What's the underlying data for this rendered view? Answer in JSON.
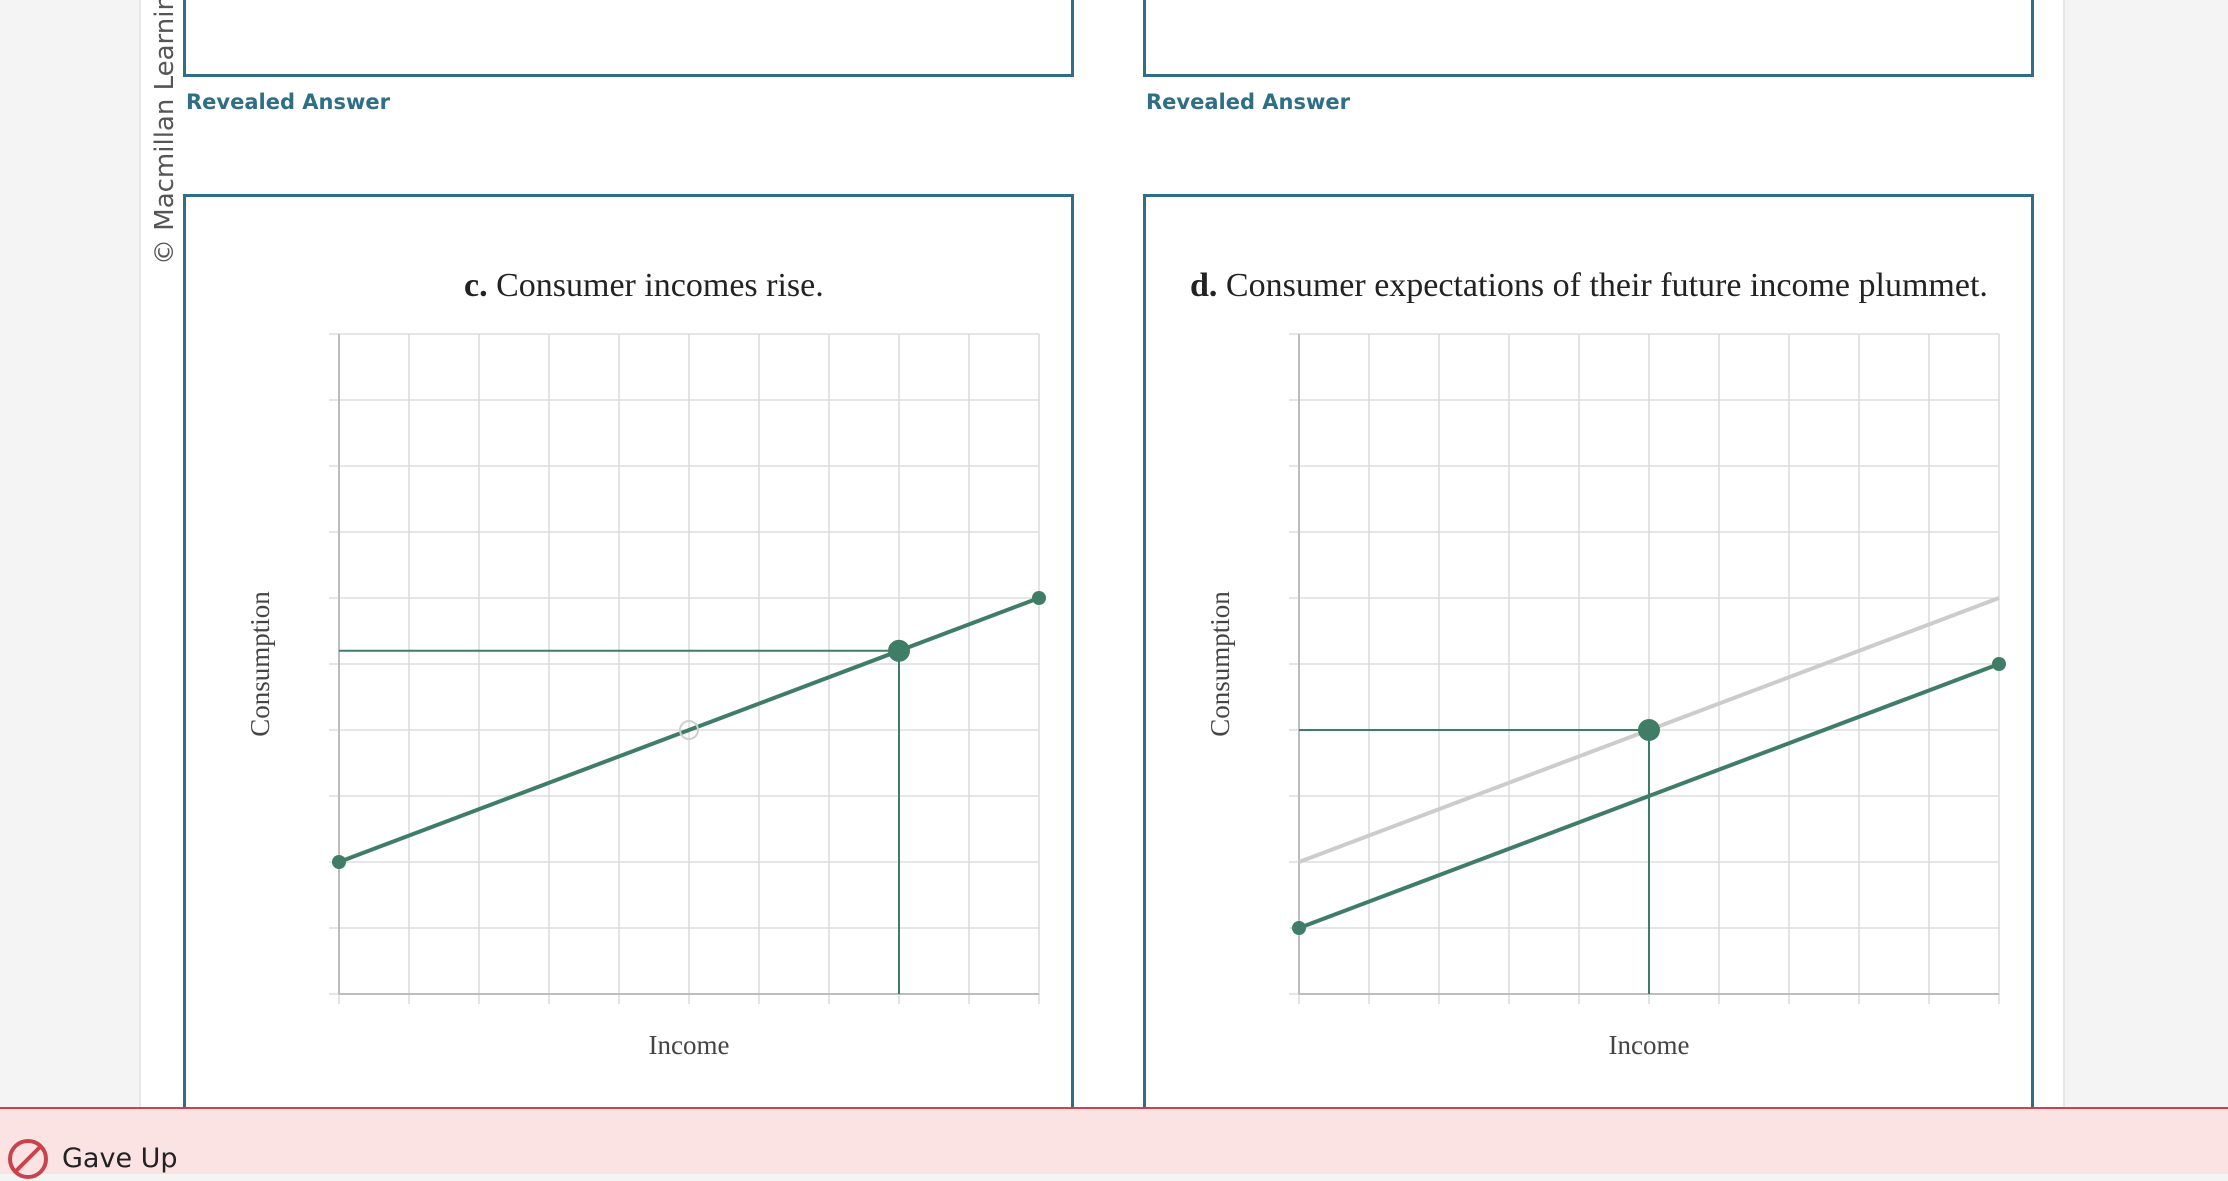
{
  "copyright": "© Macmillan Learning",
  "revealed_answer_label": "Revealed Answer",
  "footer": {
    "status": "Gave Up",
    "icon": "prohibited-icon"
  },
  "colors": {
    "accent": "#2e6f87",
    "curve": "#3f7d67",
    "faded_curve": "#cccccc",
    "footer_bg": "#fbe3e3",
    "footer_border": "#c9434c"
  },
  "panels": [
    {
      "letter": "c.",
      "title": "Consumer incomes rise."
    },
    {
      "letter": "d.",
      "title": "Consumer expectations of their future income plummet."
    }
  ],
  "chart_data": [
    {
      "type": "line",
      "title": "c. Consumer incomes rise.",
      "xlabel": "Income",
      "ylabel": "Consumption",
      "xlim": [
        0,
        10
      ],
      "ylim": [
        0,
        10
      ],
      "grid": true,
      "series": [
        {
          "values": [
            [
              0,
              2
            ],
            [
              10,
              6
            ]
          ]
        }
      ],
      "marked_point": {
        "x": 8,
        "y": 5.2,
        "drop_lines": true
      },
      "ghost_point": {
        "x": 5,
        "y": 4
      }
    },
    {
      "type": "line",
      "title": "d. Consumer expectations of their future income plummet.",
      "xlabel": "Income",
      "ylabel": "Consumption",
      "xlim": [
        0,
        10
      ],
      "ylim": [
        0,
        10
      ],
      "grid": true,
      "series": [
        {
          "values": [
            [
              0,
              2
            ],
            [
              10,
              6
            ]
          ],
          "style": "faded"
        },
        {
          "values": [
            [
              0,
              1
            ],
            [
              10,
              5
            ]
          ]
        }
      ],
      "marked_point": {
        "x": 5,
        "y": 4,
        "drop_lines": true
      }
    }
  ]
}
